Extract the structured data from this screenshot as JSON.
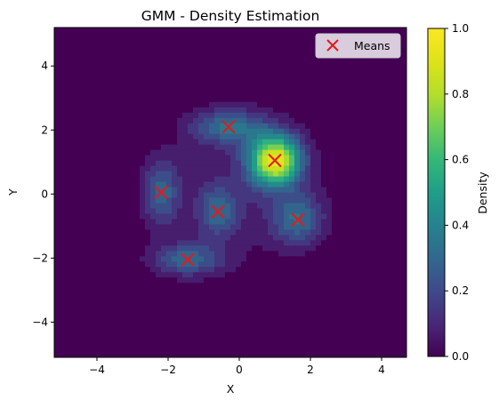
{
  "chart_data": {
    "type": "heatmap",
    "subtype": "filled contour density with scatter overlay",
    "title": "GMM - Density Estimation",
    "xlabel": "X",
    "ylabel": "Y",
    "xlim": [
      -5.2,
      4.7
    ],
    "ylim": [
      -5.1,
      5.2
    ],
    "xticks": [
      -4,
      -2,
      0,
      2,
      4
    ],
    "yticks": [
      -4,
      -2,
      0,
      2,
      4
    ],
    "xtick_labels": [
      "−4",
      "−2",
      "0",
      "2",
      "4"
    ],
    "ytick_labels": [
      "−4",
      "−2",
      "0",
      "2",
      "4"
    ],
    "grid": false,
    "colormap": "viridis",
    "colorbar": {
      "label": "Density",
      "range": [
        0,
        1
      ],
      "ticks": [
        0.0,
        0.2,
        0.4,
        0.6,
        0.8,
        1.0
      ],
      "tick_labels": [
        "0.0",
        "0.2",
        "0.4",
        "0.6",
        "0.8",
        "1.0"
      ]
    },
    "components": [
      {
        "x": -0.3,
        "y": 2.1,
        "weight": 0.28,
        "sx": 0.72,
        "sy": 0.38
      },
      {
        "x": 1.0,
        "y": 1.05,
        "weight": 0.78,
        "sx": 0.5,
        "sy": 0.55
      },
      {
        "x": -2.2,
        "y": 0.05,
        "weight": 0.24,
        "sx": 0.35,
        "sy": 0.7
      },
      {
        "x": -0.6,
        "y": -0.55,
        "weight": 0.22,
        "sx": 0.4,
        "sy": 0.55
      },
      {
        "x": 1.65,
        "y": -0.8,
        "weight": 0.26,
        "sx": 0.5,
        "sy": 0.55
      },
      {
        "x": -1.45,
        "y": -2.05,
        "weight": 0.26,
        "sx": 0.7,
        "sy": 0.35
      },
      {
        "x": 0.0,
        "y": 0.1,
        "weight": 0.09,
        "sx": 1.7,
        "sy": 1.7
      }
    ],
    "series": [
      {
        "name": "Means",
        "marker": "x",
        "color": "#e31a1c",
        "points": [
          {
            "x": -0.3,
            "y": 2.1
          },
          {
            "x": 1.0,
            "y": 1.05
          },
          {
            "x": -2.2,
            "y": 0.05
          },
          {
            "x": -0.6,
            "y": -0.55
          },
          {
            "x": 1.65,
            "y": -0.8
          },
          {
            "x": -1.45,
            "y": -2.05
          }
        ]
      }
    ],
    "legend": {
      "position": "top-right",
      "entries": [
        "Means"
      ]
    }
  }
}
